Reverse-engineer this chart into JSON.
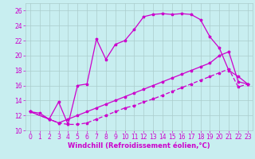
{
  "xlabel": "Windchill (Refroidissement éolien,°C)",
  "bg_color": "#c8eef0",
  "grid_color": "#aacccc",
  "line_color": "#cc00cc",
  "xlim": [
    -0.5,
    23.5
  ],
  "ylim": [
    10,
    27
  ],
  "xticks": [
    0,
    1,
    2,
    3,
    4,
    5,
    6,
    7,
    8,
    9,
    10,
    11,
    12,
    13,
    14,
    15,
    16,
    17,
    18,
    19,
    20,
    21,
    22,
    23
  ],
  "yticks": [
    10,
    12,
    14,
    16,
    18,
    20,
    22,
    24,
    26
  ],
  "series1_x": [
    0,
    1,
    2,
    3,
    4,
    5,
    6,
    7,
    8,
    9,
    10,
    11,
    12,
    13,
    14,
    15,
    16,
    17,
    18,
    19,
    20,
    21,
    22,
    23
  ],
  "series1_y": [
    12.5,
    12.3,
    11.5,
    13.8,
    10.8,
    16.0,
    16.2,
    22.2,
    19.5,
    21.5,
    22.0,
    23.5,
    25.2,
    25.5,
    25.6,
    25.5,
    25.6,
    25.5,
    24.8,
    22.5,
    21.0,
    18.0,
    17.2,
    16.2
  ],
  "series2_x": [
    0,
    2,
    3,
    4,
    5,
    6,
    7,
    8,
    9,
    10,
    11,
    12,
    13,
    14,
    15,
    16,
    17,
    18,
    19,
    20,
    21,
    22,
    23
  ],
  "series2_y": [
    12.5,
    11.5,
    11.0,
    10.8,
    10.8,
    11.0,
    11.5,
    12.0,
    12.5,
    13.0,
    13.3,
    13.8,
    14.2,
    14.7,
    15.2,
    15.7,
    16.2,
    16.7,
    17.2,
    17.7,
    18.2,
    15.8,
    16.2
  ],
  "series3_x": [
    0,
    2,
    3,
    4,
    5,
    6,
    7,
    8,
    9,
    10,
    11,
    12,
    13,
    14,
    15,
    16,
    17,
    18,
    19,
    20,
    21,
    22,
    23
  ],
  "series3_y": [
    12.5,
    11.5,
    11.0,
    11.5,
    12.0,
    12.5,
    13.0,
    13.5,
    14.0,
    14.5,
    15.0,
    15.5,
    16.0,
    16.5,
    17.0,
    17.5,
    18.0,
    18.5,
    19.0,
    20.0,
    20.5,
    16.5,
    16.2
  ],
  "xlabel_fontsize": 6,
  "tick_labelsize": 5.5,
  "markersize": 2.5,
  "linewidth": 0.9
}
